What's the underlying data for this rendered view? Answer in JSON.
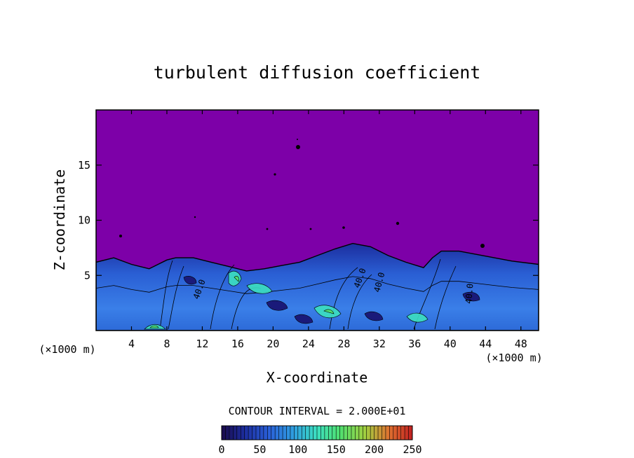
{
  "chart_data": {
    "type": "heatmap",
    "title": "turbulent diffusion coefficient",
    "xlabel": "X-coordinate",
    "ylabel": "Z-coordinate",
    "x_unit": "(×1000 m)",
    "y_unit": "(×1000 m)",
    "xlim": [
      0,
      50
    ],
    "ylim": [
      0,
      20
    ],
    "x_ticks": [
      4,
      8,
      12,
      16,
      20,
      24,
      28,
      32,
      36,
      40,
      44,
      48
    ],
    "y_ticks": [
      5,
      10,
      15
    ],
    "contour_interval_label": "CONTOUR INTERVAL = 2.000E+01",
    "contour_labels": [
      "40.0",
      "40.0",
      "40.0",
      "40.0"
    ],
    "colorbar": {
      "min": 0,
      "max": 250,
      "ticks": [
        0,
        50,
        100,
        150,
        200,
        250
      ],
      "colors": [
        "#1a0a4a",
        "#1c2d9e",
        "#2a60d8",
        "#2fa0e0",
        "#3ce0c0",
        "#50e070",
        "#a0d040",
        "#e07030",
        "#c02020"
      ]
    },
    "background_value": 0,
    "background_color": "#7d00a8",
    "turbulent_layer_top": [
      [
        0,
        6.2
      ],
      [
        2,
        6.6
      ],
      [
        4,
        6.0
      ],
      [
        6,
        5.6
      ],
      [
        7,
        6.0
      ],
      [
        8,
        6.4
      ],
      [
        9,
        6.6
      ],
      [
        11,
        6.6
      ],
      [
        13,
        6.2
      ],
      [
        15,
        5.8
      ],
      [
        17,
        5.4
      ],
      [
        19,
        5.6
      ],
      [
        21,
        5.9
      ],
      [
        23,
        6.2
      ],
      [
        25,
        6.8
      ],
      [
        27,
        7.4
      ],
      [
        29,
        7.9
      ],
      [
        31,
        7.6
      ],
      [
        33,
        6.8
      ],
      [
        35,
        6.2
      ],
      [
        37,
        5.7
      ],
      [
        38,
        6.6
      ],
      [
        39,
        7.2
      ],
      [
        41,
        7.2
      ],
      [
        43,
        6.9
      ],
      [
        45,
        6.6
      ],
      [
        47,
        6.3
      ],
      [
        50,
        6.0
      ]
    ]
  }
}
